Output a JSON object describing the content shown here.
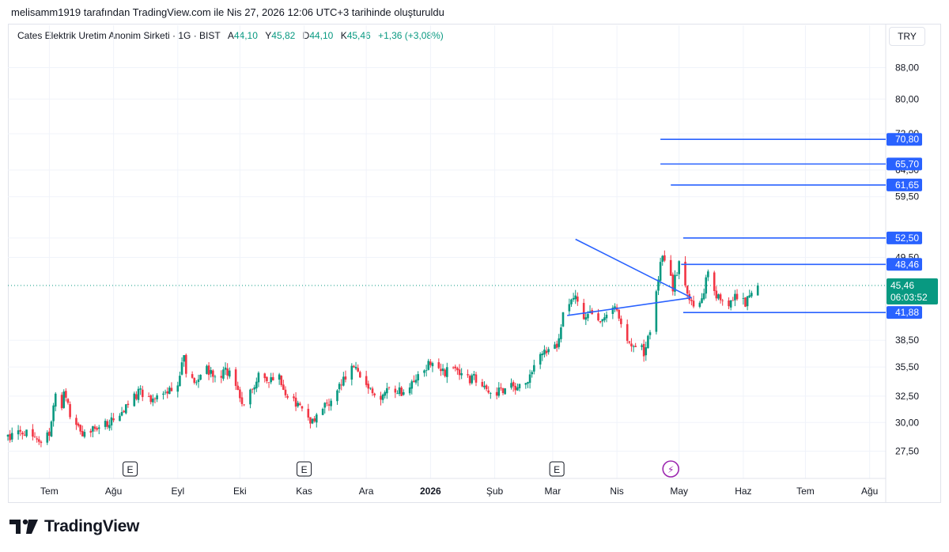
{
  "header": {
    "credit": "melisamm1919 tarafından TradingView.com ile Nis 27, 2026 12:06 UTC+3 tarihinde oluşturuldu"
  },
  "legend": {
    "symbol": "Cates Elektrik Uretim Anonim Sirketi · 1G · BIST",
    "open_label": "A",
    "open": "44,10",
    "high_label": "Y",
    "high": "45,82",
    "low_label": "D",
    "low": "44,10",
    "close_label": "K",
    "close": "45,46",
    "change": "+1,36 (+3,08%)"
  },
  "currency": "TRY",
  "brand": {
    "name": "TradingView"
  },
  "colors": {
    "up": "#089981",
    "down": "#f23645",
    "drawing": "#2962ff",
    "label_bg": "#2962ff",
    "last_price_bg": "#089981",
    "grid": "#f0f3fa"
  },
  "chart_data": {
    "type": "candlestick",
    "title": "",
    "scale": "log",
    "ylim": [
      26.5,
      94
    ],
    "y_ticks": [
      {
        "value": 88.0,
        "label": "88,00"
      },
      {
        "value": 80.0,
        "label": "80,00"
      },
      {
        "value": 72.0,
        "label": "72,00"
      },
      {
        "value": 64.5,
        "label": "64,50"
      },
      {
        "value": 59.5,
        "label": "59,50"
      },
      {
        "value": 52.5,
        "label": "52,50"
      },
      {
        "value": 49.5,
        "label": "49,50"
      },
      {
        "value": 38.5,
        "label": "38,50"
      },
      {
        "value": 35.5,
        "label": "35,50"
      },
      {
        "value": 32.5,
        "label": "32,50"
      },
      {
        "value": 30.0,
        "label": "30,00"
      },
      {
        "value": 27.5,
        "label": "27,50"
      }
    ],
    "x_ticks": [
      {
        "date": "2025-06-01",
        "label": "Haz"
      },
      {
        "date": "2025-07-01",
        "label": "Tem"
      },
      {
        "date": "2025-08-01",
        "label": "Ağu"
      },
      {
        "date": "2025-09-01",
        "label": "Eyl"
      },
      {
        "date": "2025-10-01",
        "label": "Eki"
      },
      {
        "date": "2025-11-01",
        "label": "Kas"
      },
      {
        "date": "2025-12-01",
        "label": "Ara"
      },
      {
        "date": "2026-01-01",
        "label": "2026",
        "bold": true
      },
      {
        "date": "2026-02-01",
        "label": "Şub"
      },
      {
        "date": "2026-03-01",
        "label": "Mar"
      },
      {
        "date": "2026-04-01",
        "label": "Nis"
      },
      {
        "date": "2026-05-01",
        "label": "May"
      },
      {
        "date": "2026-06-01",
        "label": "Haz"
      },
      {
        "date": "2026-07-01",
        "label": "Tem"
      },
      {
        "date": "2026-08-01",
        "label": "Ağu"
      }
    ],
    "x_range": [
      "2025-06-11",
      "2026-08-08"
    ],
    "price_levels": [
      {
        "value": 70.8,
        "label": "70,80",
        "start": "2026-04-22"
      },
      {
        "value": 65.7,
        "label": "65,70",
        "start": "2026-04-22"
      },
      {
        "value": 61.65,
        "label": "61,65",
        "start": "2026-04-27"
      },
      {
        "value": 52.5,
        "label": "52,50",
        "start": "2026-05-03"
      },
      {
        "value": 48.46,
        "label": "48,46",
        "start": "2026-05-02"
      },
      {
        "value": 41.88,
        "label": "41,88",
        "start": "2026-05-03"
      }
    ],
    "triangle": {
      "upper": [
        {
          "date": "2026-03-12",
          "value": 52.3
        },
        {
          "date": "2026-05-07",
          "value": 43.8
        }
      ],
      "lower": [
        {
          "date": "2026-03-08",
          "value": 41.5
        },
        {
          "date": "2026-05-07",
          "value": 43.8
        }
      ]
    },
    "last_price": {
      "value": 45.46,
      "label": "45,46",
      "countdown": "06:03:52"
    },
    "event_markers": [
      {
        "date": "2025-08-09",
        "label": "E",
        "kind": "earnings"
      },
      {
        "date": "2025-11-01",
        "label": "E",
        "kind": "earnings"
      },
      {
        "date": "2026-03-03",
        "label": "E",
        "kind": "earnings"
      },
      {
        "date": "2026-04-27",
        "label": "⚡",
        "kind": "dividend"
      }
    ],
    "anchors": [
      [
        "2025-06-11",
        28.7
      ],
      [
        "2025-06-20",
        29.3
      ],
      [
        "2025-06-26",
        28.0
      ],
      [
        "2025-07-01",
        29.2
      ],
      [
        "2025-07-04",
        33.0
      ],
      [
        "2025-07-07",
        31.6
      ],
      [
        "2025-07-08",
        33.4
      ],
      [
        "2025-07-12",
        29.6
      ],
      [
        "2025-07-18",
        29.0
      ],
      [
        "2025-07-26",
        29.8
      ],
      [
        "2025-07-31",
        30.2
      ],
      [
        "2025-08-07",
        31.3
      ],
      [
        "2025-08-14",
        33.0
      ],
      [
        "2025-08-18",
        32.3
      ],
      [
        "2025-08-24",
        32.6
      ],
      [
        "2025-09-01",
        33.8
      ],
      [
        "2025-09-04",
        36.8
      ],
      [
        "2025-09-06",
        33.6
      ],
      [
        "2025-09-12",
        34.8
      ],
      [
        "2025-09-15",
        35.3
      ],
      [
        "2025-09-20",
        34.3
      ],
      [
        "2025-09-25",
        35.1
      ],
      [
        "2025-09-28",
        34.1
      ],
      [
        "2025-10-03",
        31.6
      ],
      [
        "2025-10-06",
        32.8
      ],
      [
        "2025-10-10",
        34.4
      ],
      [
        "2025-10-14",
        33.7
      ],
      [
        "2025-10-20",
        34.4
      ],
      [
        "2025-10-24",
        32.6
      ],
      [
        "2025-11-01",
        31.1
      ],
      [
        "2025-11-04",
        30.0
      ],
      [
        "2025-11-10",
        31.4
      ],
      [
        "2025-11-14",
        32.1
      ],
      [
        "2025-11-21",
        34.6
      ],
      [
        "2025-11-25",
        35.3
      ],
      [
        "2025-12-01",
        34.1
      ],
      [
        "2025-12-06",
        32.3
      ],
      [
        "2025-12-13",
        33.4
      ],
      [
        "2025-12-18",
        32.8
      ],
      [
        "2025-12-24",
        34.4
      ],
      [
        "2026-01-01",
        36.0
      ],
      [
        "2026-01-06",
        34.8
      ],
      [
        "2026-01-13",
        35.4
      ],
      [
        "2026-01-18",
        34.3
      ],
      [
        "2026-01-23",
        34.3
      ],
      [
        "2026-01-28",
        33.1
      ],
      [
        "2026-02-03",
        33.0
      ],
      [
        "2026-02-09",
        33.4
      ],
      [
        "2026-02-17",
        33.7
      ],
      [
        "2026-02-22",
        37.0
      ],
      [
        "2026-02-28",
        37.8
      ],
      [
        "2026-03-03",
        38.1
      ],
      [
        "2026-03-07",
        42.6
      ],
      [
        "2026-03-12",
        43.5
      ],
      [
        "2026-03-16",
        41.1
      ],
      [
        "2026-03-18",
        41.8
      ],
      [
        "2026-03-21",
        40.9
      ],
      [
        "2026-03-26",
        40.9
      ],
      [
        "2026-03-31",
        43.0
      ],
      [
        "2026-04-04",
        39.6
      ],
      [
        "2026-04-08",
        37.6
      ],
      [
        "2026-04-12",
        38.8
      ],
      [
        "2026-04-14",
        36.2
      ],
      [
        "2026-04-17",
        39.8
      ],
      [
        "2026-04-20",
        44.4
      ],
      [
        "2026-04-23",
        50.4
      ],
      [
        "2026-04-26",
        48.4
      ],
      [
        "2026-04-28",
        45.2
      ],
      [
        "2026-05-01",
        48.6
      ],
      [
        "2026-05-05",
        44.9
      ],
      [
        "2026-05-07",
        43.4
      ],
      [
        "2026-05-11",
        42.8
      ],
      [
        "2026-05-15",
        47.2
      ],
      [
        "2026-05-18",
        44.7
      ],
      [
        "2026-05-21",
        43.3
      ],
      [
        "2026-05-24",
        42.9
      ],
      [
        "2026-05-27",
        44.1
      ],
      [
        "2026-05-30",
        43.4
      ],
      [
        "2026-06-02",
        43.2
      ],
      [
        "2026-06-05",
        44.2
      ],
      [
        "2026-06-08",
        45.46
      ]
    ]
  }
}
